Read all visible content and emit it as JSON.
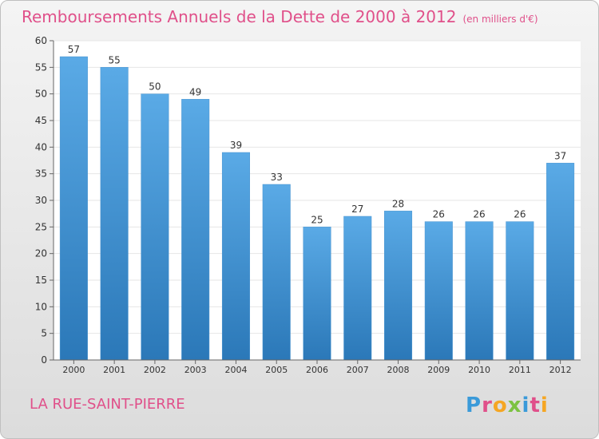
{
  "header": {
    "title": "Remboursements Annuels de la Dette de 2000 à 2012",
    "subtitle": "(en milliers d'€)"
  },
  "footer": {
    "commune": "LA RUE-SAINT-PIERRE",
    "logo": "Proxiti"
  },
  "colors": {
    "bar_top": "#5aaae6",
    "bar_bottom": "#2b78b8",
    "accent": "#e0508a"
  },
  "chart_data": {
    "type": "bar",
    "title": "Remboursements Annuels de la Dette de 2000 à 2012",
    "xlabel": "",
    "ylabel": "",
    "ylim": [
      0,
      60
    ],
    "yticks": [
      0,
      5,
      10,
      15,
      20,
      25,
      30,
      35,
      40,
      45,
      50,
      55,
      60
    ],
    "grid": true,
    "categories": [
      "2000",
      "2001",
      "2002",
      "2003",
      "2004",
      "2005",
      "2006",
      "2007",
      "2008",
      "2009",
      "2010",
      "2011",
      "2012"
    ],
    "values": [
      57,
      55,
      50,
      49,
      39,
      33,
      25,
      27,
      28,
      26,
      26,
      26,
      37
    ]
  }
}
